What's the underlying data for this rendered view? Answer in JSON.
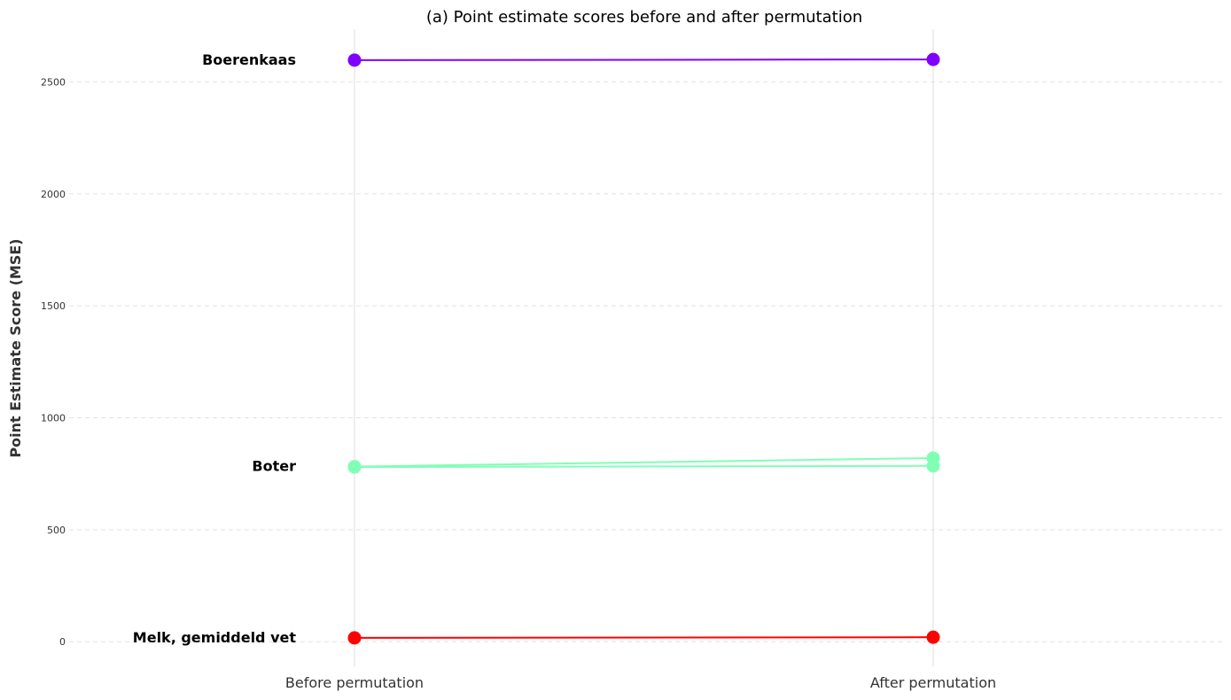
{
  "chart_data": {
    "type": "line",
    "title": "(a) Point estimate scores before and after permutation",
    "ylabel": "Point Estimate Score (MSE)",
    "categories": [
      "Before permutation",
      "After permutation"
    ],
    "ylim": [
      -110,
      2735
    ],
    "yticks": [
      0,
      500,
      1000,
      1500,
      2000,
      2500
    ],
    "grid": "horizontal dashed",
    "series": [
      {
        "name": "Boerenkaas",
        "color": "#7f00ff",
        "values": [
          2597,
          2600
        ]
      },
      {
        "name": "Boter",
        "color": "#80ffb4",
        "values": [
          782,
          820
        ]
      },
      {
        "color": "#80ffb4",
        "values": [
          780,
          785
        ]
      },
      {
        "name": "Melk, gemiddeld vet",
        "color": "#ff0000",
        "values": [
          17,
          20
        ]
      }
    ]
  }
}
